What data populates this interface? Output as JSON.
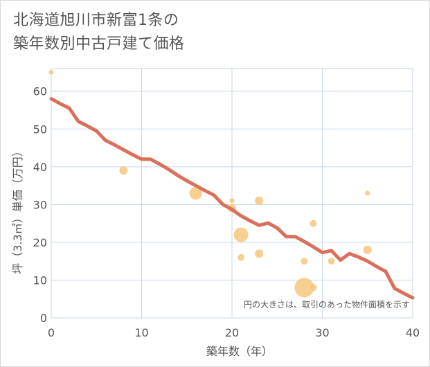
{
  "chart_data": {
    "type": "scatter",
    "title_line1": "北海道旭川市新富1条の",
    "title_line2": "築年数別中古戸建て価格",
    "xlabel": "築年数（年）",
    "ylabel": "坪（3.3㎡）単価（万円）",
    "xlim": [
      0,
      40
    ],
    "ylim": [
      0,
      66
    ],
    "xticks": [
      0,
      10,
      20,
      30,
      40
    ],
    "yticks": [
      0,
      10,
      20,
      30,
      40,
      50,
      60
    ],
    "grid": true,
    "note": "円の大きさは、取引のあった物件面積を示す",
    "colors": {
      "bubble": "#f5c77e",
      "trend": "#d9705b",
      "grid": "#c8d6e5"
    },
    "points": [
      {
        "x": 0,
        "y": 65,
        "size": 1
      },
      {
        "x": 8,
        "y": 39,
        "size": 3
      },
      {
        "x": 16,
        "y": 33,
        "size": 7
      },
      {
        "x": 20,
        "y": 31,
        "size": 1
      },
      {
        "x": 20,
        "y": 29,
        "size": 3
      },
      {
        "x": 21,
        "y": 22,
        "size": 9
      },
      {
        "x": 21,
        "y": 16,
        "size": 2
      },
      {
        "x": 23,
        "y": 31,
        "size": 3
      },
      {
        "x": 23,
        "y": 17,
        "size": 3
      },
      {
        "x": 28,
        "y": 15,
        "size": 2
      },
      {
        "x": 28,
        "y": 8,
        "size": 16
      },
      {
        "x": 29,
        "y": 25,
        "size": 2
      },
      {
        "x": 29,
        "y": 8,
        "size": 2
      },
      {
        "x": 31,
        "y": 15,
        "size": 2
      },
      {
        "x": 35,
        "y": 33,
        "size": 1
      },
      {
        "x": 35,
        "y": 18,
        "size": 3
      }
    ],
    "trend": {
      "x": [
        0,
        1,
        2,
        3,
        4,
        5,
        6,
        7,
        8,
        9,
        10,
        11,
        12,
        13,
        14,
        15,
        16,
        17,
        18,
        19,
        20,
        21,
        22,
        23,
        24,
        25,
        26,
        27,
        28,
        29,
        30,
        31,
        32,
        33,
        34,
        35,
        36,
        37,
        38,
        39,
        40
      ],
      "y": [
        58,
        56.7,
        55.5,
        52,
        50.8,
        49.5,
        47,
        45.8,
        44.5,
        43.2,
        42,
        42,
        40.7,
        39.3,
        37.7,
        36.3,
        35,
        33.7,
        32.5,
        30,
        28.7,
        27,
        25.7,
        24.5,
        25.1,
        23.8,
        21.5,
        21.5,
        20.2,
        18.8,
        17.3,
        17.8,
        15.3,
        17,
        16.1,
        15,
        13.6,
        12.3,
        7.8,
        6.5,
        5.3
      ]
    }
  }
}
